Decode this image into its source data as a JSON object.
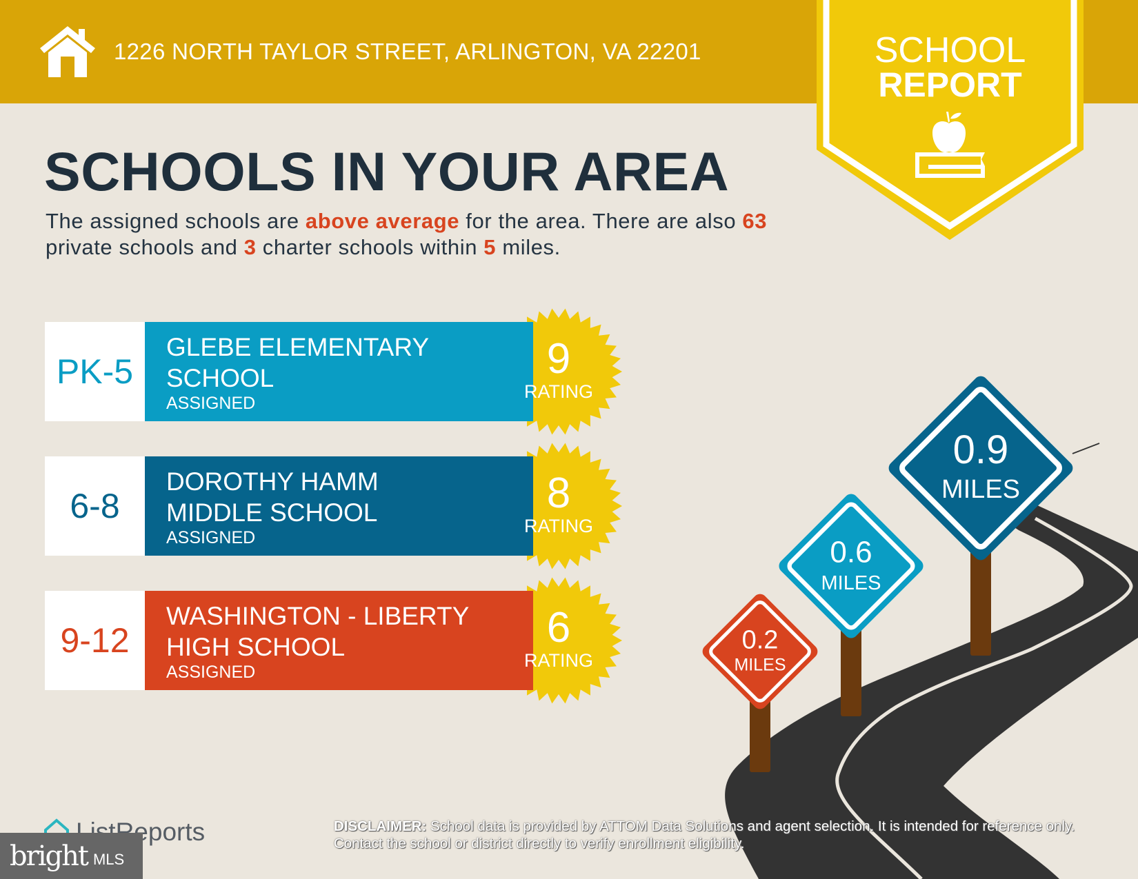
{
  "header": {
    "address": "1226 NORTH TAYLOR STREET, ARLINGTON, VA 22201",
    "icon": "house-icon"
  },
  "badge": {
    "line1": "SCHOOL",
    "line2": "REPORT",
    "icon": "apple-on-book-icon"
  },
  "title": "SCHOOLS IN YOUR AREA",
  "intro": {
    "t1": "The assigned schools are ",
    "h1": "above average",
    "t2": " for the area. There are also ",
    "h2": "63",
    "t3": " private schools and ",
    "h3": "3",
    "t4": " charter schools within ",
    "h4": "5",
    "t5": " miles."
  },
  "schools": [
    {
      "grades": "PK-5",
      "name1": "GLEBE ELEMENTARY",
      "name2": "SCHOOL",
      "status": "ASSIGNED",
      "rating": "9",
      "rating_label": "RATING",
      "color": "#0a9dc4",
      "distance": "0.6",
      "unit": "MILES"
    },
    {
      "grades": "6-8",
      "name1": "DOROTHY HAMM",
      "name2": "MIDDLE SCHOOL",
      "status": "ASSIGNED",
      "rating": "8",
      "rating_label": "RATING",
      "color": "#06648c",
      "distance": "0.9",
      "unit": "MILES"
    },
    {
      "grades": "9-12",
      "name1": "WASHINGTON - LIBERTY",
      "name2": "HIGH SCHOOL",
      "status": "ASSIGNED",
      "rating": "6",
      "rating_label": "RATING",
      "color": "#d8441f",
      "distance": "0.2",
      "unit": "MILES"
    }
  ],
  "colors": {
    "header": "#d9a507",
    "badge": "#f1c90a",
    "star": "#f1c90a",
    "road": "#333333",
    "post": "#6b3a0e",
    "background": "#ebe6dd"
  },
  "footer": {
    "disclaimer_label": "DISCLAIMER:",
    "disclaimer": " School data is provided by ATTOM Data Solutions and agent selection. It is intended for reference only. Contact the school or district directly to verify enrollment eligibility.",
    "listreports": "ListReports",
    "bright": "bright",
    "mls": "MLS"
  }
}
